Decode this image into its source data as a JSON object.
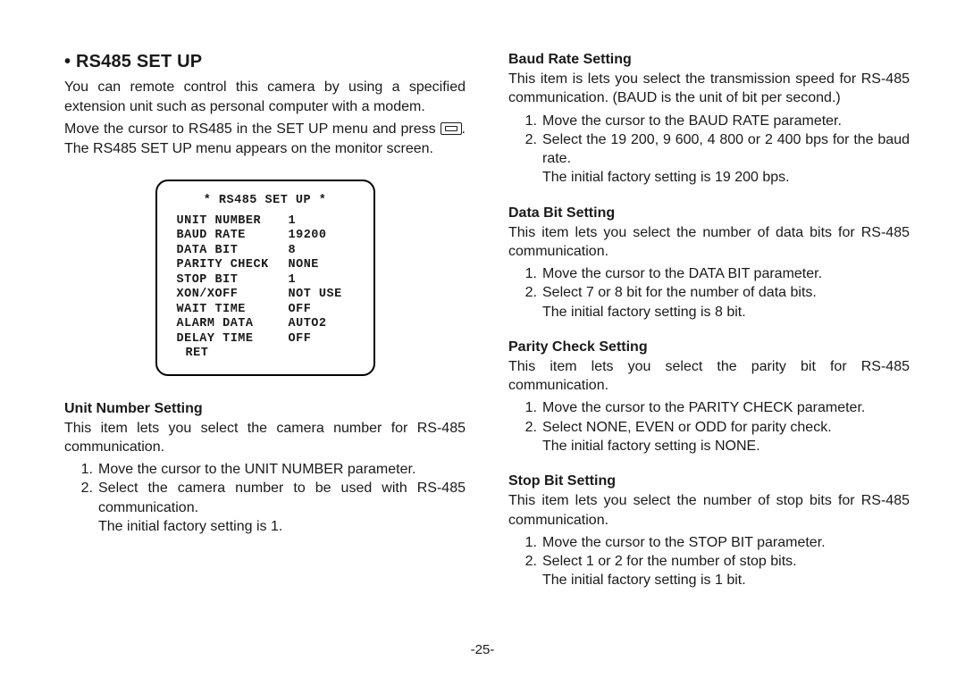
{
  "page_number": "-25-",
  "left": {
    "heading_bullet": "•",
    "heading": "RS485 SET UP",
    "intro_para1": "You can remote control this camera by using a specified extension unit such as personal computer with a modem.",
    "intro_para2_pre": "Move the cursor to RS485 in the SET UP menu and press ",
    "intro_para2_post": ". The RS485 SET UP menu appears on the monitor screen.",
    "osd": {
      "title": "* RS485  SET UP *",
      "rows": [
        {
          "label": "UNIT NUMBER",
          "value": "1"
        },
        {
          "label": "BAUD RATE",
          "value": "19200"
        },
        {
          "label": "DATA BIT",
          "value": "8"
        },
        {
          "label": "PARITY CHECK",
          "value": "NONE"
        },
        {
          "label": "STOP BIT",
          "value": "1"
        },
        {
          "label": "XON/XOFF",
          "value": "NOT USE"
        },
        {
          "label": "WAIT TIME",
          "value": "OFF"
        },
        {
          "label": "ALARM DATA",
          "value": "AUTO2"
        },
        {
          "label": "DELAY TIME",
          "value": "OFF"
        }
      ],
      "ret": "RET"
    },
    "unit_number": {
      "heading": "Unit Number Setting",
      "intro": "This item lets you select the camera number for RS-485 communication.",
      "steps": [
        "Move the cursor to the UNIT NUMBER parameter.",
        "Select the camera number to be used with RS-485 communication."
      ],
      "initial": "The initial factory setting is 1."
    }
  },
  "right": {
    "baud": {
      "heading": "Baud Rate Setting",
      "intro": "This item is lets you select the transmission speed for RS-485 communication. (BAUD is the unit of bit per second.)",
      "steps": [
        "Move the cursor to the BAUD RATE parameter.",
        "Select the 19 200, 9 600, 4 800 or 2 400 bps for the baud rate."
      ],
      "initial": "The initial factory setting is 19 200 bps."
    },
    "databit": {
      "heading": "Data Bit Setting",
      "intro": "This item lets you select the number of data bits for RS-485 communication.",
      "steps": [
        "Move the cursor to the DATA BIT parameter.",
        "Select 7 or 8 bit for the number of data bits."
      ],
      "initial": "The initial factory setting is 8 bit."
    },
    "parity": {
      "heading": "Parity Check Setting",
      "intro": "This item lets you select the parity bit for RS-485 communication.",
      "steps": [
        "Move the cursor to the PARITY CHECK parameter.",
        "Select NONE, EVEN or ODD for parity check."
      ],
      "initial": "The initial factory setting is NONE."
    },
    "stopbit": {
      "heading": "Stop Bit Setting",
      "intro": "This item lets you select the number of stop bits for RS-485 communication.",
      "steps": [
        "Move the cursor to the STOP BIT parameter.",
        "Select 1 or 2 for the number of stop bits."
      ],
      "initial": "The initial factory setting is 1 bit."
    }
  }
}
